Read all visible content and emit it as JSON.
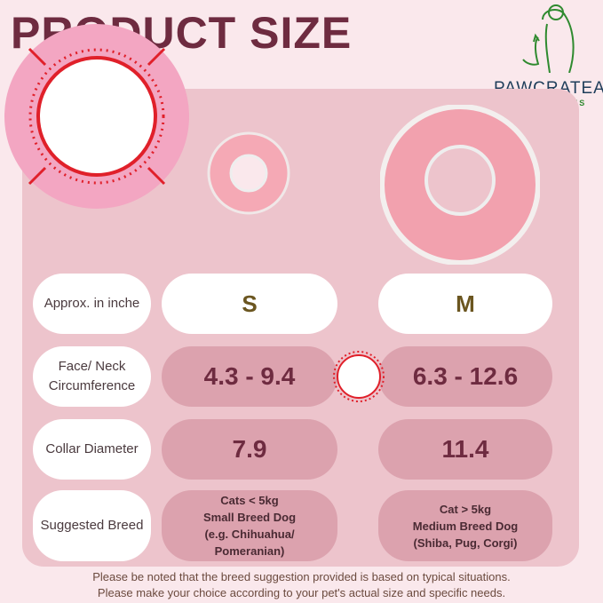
{
  "title": "PRODUCT SIZE",
  "logo": {
    "brand": "PAWCRATEAN",
    "tagline": "PET SUPPLIES"
  },
  "table": {
    "header": {
      "label": "Approx. in inche",
      "s": "S",
      "m": "M"
    },
    "rows": [
      {
        "label": "Face/ Neck Circumference",
        "s": "4.3 - 9.4",
        "m": "6.3 - 12.6"
      },
      {
        "label": "Collar Diameter",
        "s": "7.9",
        "m": "11.4"
      },
      {
        "label": "Suggested Breed",
        "s": "Cats < 5kg\nSmall Breed Dog\n(e.g. Chihuahua/\nPomeranian)",
        "m": "Cat > 5kg\nMedium Breed Dog\n(Shiba, Pug, Corgi)"
      }
    ]
  },
  "note": {
    "line1": "Please be noted that the breed suggestion provided is based on typical situations.",
    "line2": "Please make your choice according to your pet's actual size and specific needs."
  },
  "colors": {
    "title": "#6e2b40",
    "panel": "#edc4cc",
    "value_pill": "#dca2ae",
    "accent_red": "#e0202a",
    "logo_green": "#2f8a2f"
  }
}
